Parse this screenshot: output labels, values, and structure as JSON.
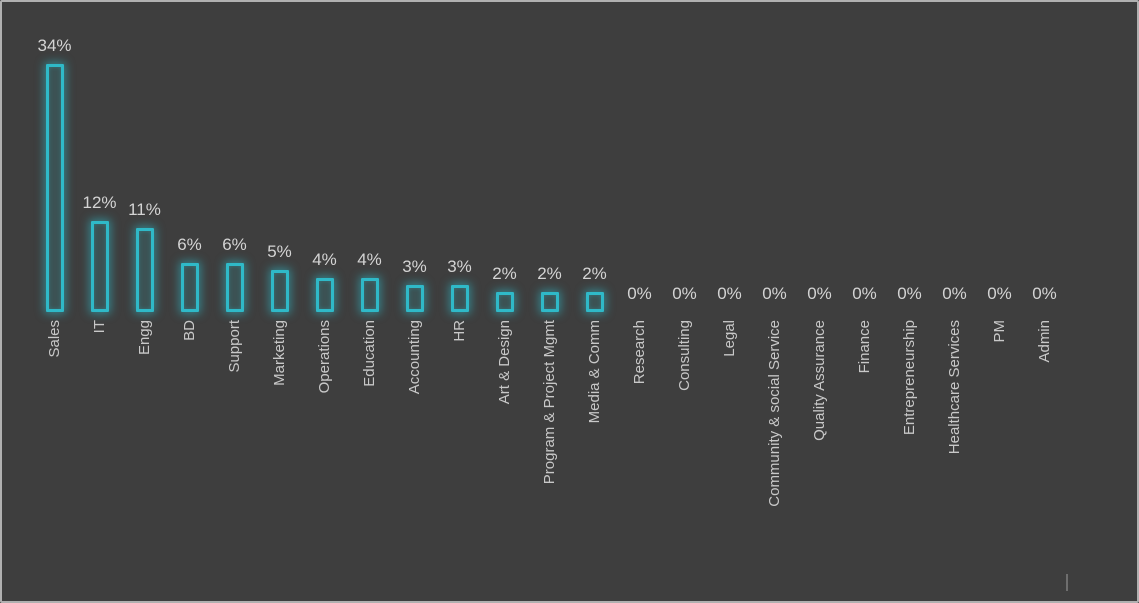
{
  "chart_data": {
    "type": "bar",
    "title": "",
    "xlabel": "",
    "ylabel": "",
    "legend": null,
    "grid": false,
    "axes_visible": false,
    "ylim": [
      0,
      36
    ],
    "orientation": "vertical",
    "categories": [
      "Sales",
      "IT",
      "Engg",
      "BD",
      "Support",
      "Marketing",
      "Operations",
      "Education",
      "Accounting",
      "HR",
      "Art & Design",
      "Program & Project Mgmt",
      "Media & Comm",
      "Research",
      "Consulting",
      "Legal",
      "Community & social Service",
      "Quality Assurance",
      "Finance",
      "Entrepreneurship",
      "Healthcare Services",
      "PM",
      "Admin"
    ],
    "values": [
      34,
      12,
      11,
      6,
      6,
      5,
      4,
      4,
      3,
      3,
      2,
      2,
      2,
      0,
      0,
      0,
      0,
      0,
      0,
      0,
      0,
      0,
      0
    ],
    "value_labels": [
      "34%",
      "12%",
      "11%",
      "6%",
      "6%",
      "5%",
      "4%",
      "4%",
      "3%",
      "3%",
      "2%",
      "2%",
      "2%",
      "0%",
      "0%",
      "0%",
      "0%",
      "0%",
      "0%",
      "0%",
      "0%",
      "0%",
      "0%"
    ],
    "category_label_rotation_deg": -90
  },
  "colors": {
    "background": "#3e3e3e",
    "frame_border": "#b0b0b0",
    "bar_stroke": "#2fb9c8",
    "bar_fill": "rgba(47,185,200,0.16)",
    "bar_glow": "rgba(47,185,200,0.55)",
    "value_label_text": "#d4d4d4",
    "category_label_text": "#c8c8c8",
    "cursor_mark": "#6e6e6e"
  }
}
